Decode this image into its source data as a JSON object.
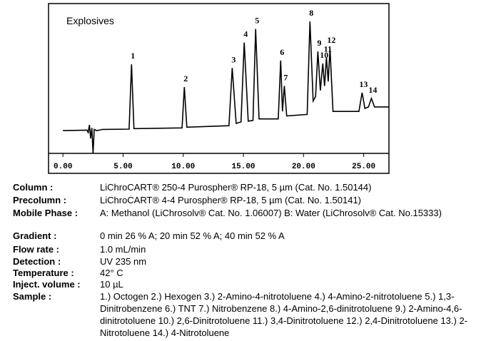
{
  "chart_data": {
    "type": "line",
    "title": "Explosives",
    "color": "#000000",
    "x": [
      0,
      2.0,
      2.1,
      2.2,
      2.3,
      2.4,
      2.5,
      2.6,
      2.8,
      3.3,
      5.5,
      5.7,
      5.9,
      9.9,
      10.09,
      10.3,
      13.8,
      14.07,
      14.4,
      14.8,
      15.07,
      15.4,
      15.8,
      16.02,
      16.3,
      17.9,
      18.1,
      18.25,
      18.4,
      18.6,
      20.3,
      20.53,
      20.8,
      21.0,
      21.19,
      21.4,
      21.6,
      21.75,
      21.9,
      22.05,
      22.2,
      22.45,
      24.6,
      24.87,
      25.1,
      25.4,
      25.64,
      25.9,
      27.1
    ],
    "values": [
      15.2,
      15.5,
      14,
      19,
      10,
      17,
      0,
      16,
      15.2,
      16,
      16.2,
      59.5,
      16.5,
      17,
      44.3,
      17.5,
      18.5,
      57,
      20,
      21,
      74,
      21.5,
      22,
      83,
      23,
      23,
      62,
      28,
      45,
      25,
      26,
      88,
      35,
      38,
      68,
      42,
      60,
      45,
      64,
      48,
      70,
      28,
      28,
      40.5,
      30,
      31,
      36.7,
      31,
      31
    ],
    "xlim": [
      -1.2,
      27.1
    ],
    "ylim": [
      0,
      100
    ],
    "xticks": [
      {
        "value": 0,
        "label": "0.00"
      },
      {
        "value": 5,
        "label": "5.00"
      },
      {
        "value": 10,
        "label": "10.00"
      },
      {
        "value": 15,
        "label": "15.00"
      },
      {
        "value": 20,
        "label": "20.00"
      },
      {
        "value": 25,
        "label": "25.00"
      }
    ],
    "peaks": [
      {
        "label": "1",
        "x": 5.7,
        "y": 59.5
      },
      {
        "label": "2",
        "x": 10.09,
        "y": 44.3
      },
      {
        "label": "3",
        "x": 14.07,
        "y": 57
      },
      {
        "label": "4",
        "x": 15.07,
        "y": 74
      },
      {
        "label": "5",
        "x": 16.02,
        "y": 83
      },
      {
        "label": "6",
        "x": 18.1,
        "y": 62
      },
      {
        "label": "7",
        "x": 18.4,
        "y": 45
      },
      {
        "label": "8",
        "x": 20.53,
        "y": 88
      },
      {
        "label": "9",
        "x": 21.19,
        "y": 68
      },
      {
        "label": "10",
        "x": 21.6,
        "y": 60
      },
      {
        "label": "11",
        "x": 21.9,
        "y": 64
      },
      {
        "label": "12",
        "x": 22.2,
        "y": 70
      },
      {
        "label": "13",
        "x": 24.87,
        "y": 40.5
      },
      {
        "label": "14",
        "x": 25.64,
        "y": 36.7
      }
    ]
  },
  "details": [
    {
      "label": "Column :",
      "value": "LiChroCART® 250-4 Purospher® RP-18, 5 µm  (Cat. No. 1.50144)"
    },
    {
      "label": "Precolumn :",
      "value": "LiChroCART® 4-4 Purospher® RP-18, 5 µm  (Cat. No. 1.50141)"
    },
    {
      "label": "Mobile Phase :",
      "value": "A: Methanol (LiChrosolv® Cat. No. 1.06007) B: Water (LiChrosolv® Cat. No.15333)"
    },
    {
      "label": "Gradient :",
      "value": "0 min 26 % A; 20 min 52 % A; 40 min 52 % A"
    },
    {
      "label": "Flow rate :",
      "value": "1.0 mL/min"
    },
    {
      "label": "Detection :",
      "value": "UV 235 nm"
    },
    {
      "label": "Temperature :",
      "value": "42° C"
    },
    {
      "label": "Inject. volume :",
      "value": "10 µL"
    },
    {
      "label": "Sample :",
      "value": "1.) Octogen 2.) Hexogen 3.) 2-Amino-4-nitrotoluene 4.) 4-Amino-2-nitrotoluene 5.) 1,3-Dinitrobenzene 6.) TNT 7.) Nitrobenzene 8.) 4-Amino-2,6-dinitrotoluene 9.) 2-Amino-4,6-dinitrotoluene 10.) 2,6-Dinitrotoluene 11.) 3,4-Dinitrotoluene 12.) 2,4-Dinitrotoluene 13.) 2-Nitrotoluene 14.) 4-Nitrotoluene"
    }
  ]
}
